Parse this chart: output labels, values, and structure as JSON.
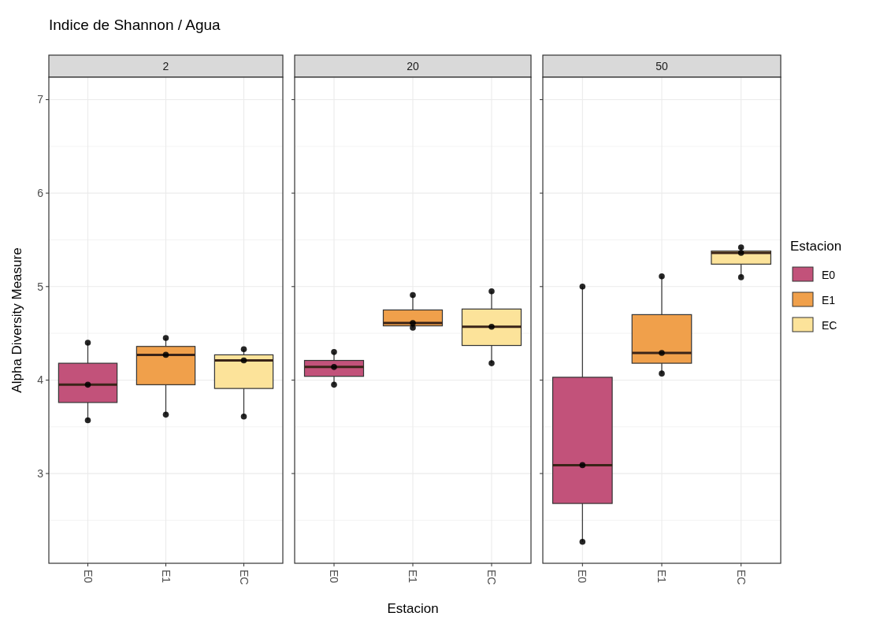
{
  "chart_data": [
    {
      "type": "box",
      "title": "Indice de Shannon / Agua",
      "subtitle": "2",
      "ylabel": "Alpha Diversity Measure",
      "categories": [
        "E0",
        "E1",
        "EC"
      ],
      "ylim": [
        2.04,
        7.24
      ],
      "yticks": [
        {
          "value": 2.5,
          "label": null
        },
        3,
        {
          "value": 3.5,
          "label": null
        },
        4,
        {
          "value": 4.5,
          "label": null
        },
        5,
        {
          "value": 5.5,
          "label": null
        },
        6,
        {
          "value": 6.5,
          "label": null
        },
        7
      ],
      "grid": true,
      "series": [
        {
          "type": "box",
          "color": "#c2527a",
          "boxes": [
            {
              "low": 3.57,
              "q1": 3.76,
              "median": 3.95,
              "q3": 4.18,
              "high": 4.4
            },
            null,
            null
          ]
        },
        {
          "type": "box",
          "color": "#f0a04b",
          "boxes": [
            null,
            {
              "low": 3.63,
              "q1": 3.95,
              "median": 4.27,
              "q3": 4.36,
              "high": 4.45
            },
            null
          ]
        },
        {
          "type": "box",
          "color": "#fce39a",
          "boxes": [
            null,
            null,
            {
              "low": 3.61,
              "q1": 3.91,
              "median": 4.21,
              "q3": 4.27,
              "high": 4.33
            }
          ]
        },
        {
          "type": "scatter",
          "color": "#000000",
          "x": [
            "E0",
            "E0",
            "E0",
            "E1",
            "E1",
            "E1",
            "EC",
            "EC",
            "EC"
          ],
          "values": [
            4.4,
            3.95,
            3.57,
            4.45,
            4.27,
            3.63,
            4.33,
            4.21,
            3.61
          ]
        }
      ]
    },
    {
      "type": "box",
      "subtitle": "20",
      "xlabel": "Estacion",
      "categories": [
        "E0",
        "E1",
        "EC"
      ],
      "ylim": [
        2.04,
        7.24
      ],
      "yticks": [
        {
          "value": 2.5,
          "label": null
        },
        3,
        {
          "value": 3.5,
          "label": null
        },
        4,
        {
          "value": 4.5,
          "label": null
        },
        5,
        {
          "value": 5.5,
          "label": null
        },
        6,
        {
          "value": 6.5,
          "label": null
        },
        7
      ],
      "tick_labels": "x",
      "grid": true,
      "series": [
        {
          "type": "box",
          "color": "#c2527a",
          "boxes": [
            {
              "low": 3.95,
              "q1": 4.04,
              "median": 4.14,
              "q3": 4.21,
              "high": 4.3
            },
            null,
            null
          ]
        },
        {
          "type": "box",
          "color": "#f0a04b",
          "boxes": [
            null,
            {
              "low": 4.56,
              "q1": 4.58,
              "median": 4.61,
              "q3": 4.75,
              "high": 4.91
            },
            null
          ]
        },
        {
          "type": "box",
          "color": "#fce39a",
          "boxes": [
            null,
            null,
            {
              "low": 4.18,
              "q1": 4.37,
              "median": 4.57,
              "q3": 4.76,
              "high": 4.95
            }
          ]
        },
        {
          "type": "scatter",
          "color": "#000000",
          "x": [
            "E0",
            "E0",
            "E0",
            "E1",
            "E1",
            "E1",
            "EC",
            "EC",
            "EC"
          ],
          "values": [
            4.3,
            4.14,
            3.95,
            4.91,
            4.61,
            4.56,
            4.95,
            4.57,
            4.18
          ]
        }
      ]
    },
    {
      "type": "box",
      "subtitle": "50",
      "legend_title": "Estacion",
      "categories": [
        "E0",
        "E1",
        "EC"
      ],
      "ylim": [
        2.04,
        7.24
      ],
      "yticks": [
        {
          "value": 2.5,
          "label": null
        },
        3,
        {
          "value": 3.5,
          "label": null
        },
        4,
        {
          "value": 4.5,
          "label": null
        },
        5,
        {
          "value": 5.5,
          "label": null
        },
        6,
        {
          "value": 6.5,
          "label": null
        },
        7
      ],
      "tick_labels": "x",
      "grid": true,
      "legend": "right",
      "series": [
        {
          "type": "box",
          "name": "E0",
          "color": "#c2527a",
          "boxes": [
            {
              "low": 2.27,
              "q1": 2.68,
              "median": 3.09,
              "q3": 4.03,
              "high": 5.0
            },
            null,
            null
          ]
        },
        {
          "type": "box",
          "name": "E1",
          "color": "#f0a04b",
          "boxes": [
            null,
            {
              "low": 4.07,
              "q1": 4.18,
              "median": 4.29,
              "q3": 4.7,
              "high": 5.11
            },
            null
          ]
        },
        {
          "type": "box",
          "name": "EC",
          "color": "#fce39a",
          "boxes": [
            null,
            null,
            {
              "low": 5.1,
              "q1": 5.24,
              "median": 5.36,
              "q3": 5.38,
              "high": 5.42
            }
          ]
        },
        {
          "type": "scatter",
          "color": "#000000",
          "x": [
            "E0",
            "E0",
            "E0",
            "E1",
            "E1",
            "E1",
            "EC",
            "EC",
            "EC"
          ],
          "values": [
            5.0,
            3.09,
            2.27,
            5.11,
            4.29,
            4.07,
            5.42,
            5.36,
            5.1
          ]
        }
      ]
    }
  ]
}
